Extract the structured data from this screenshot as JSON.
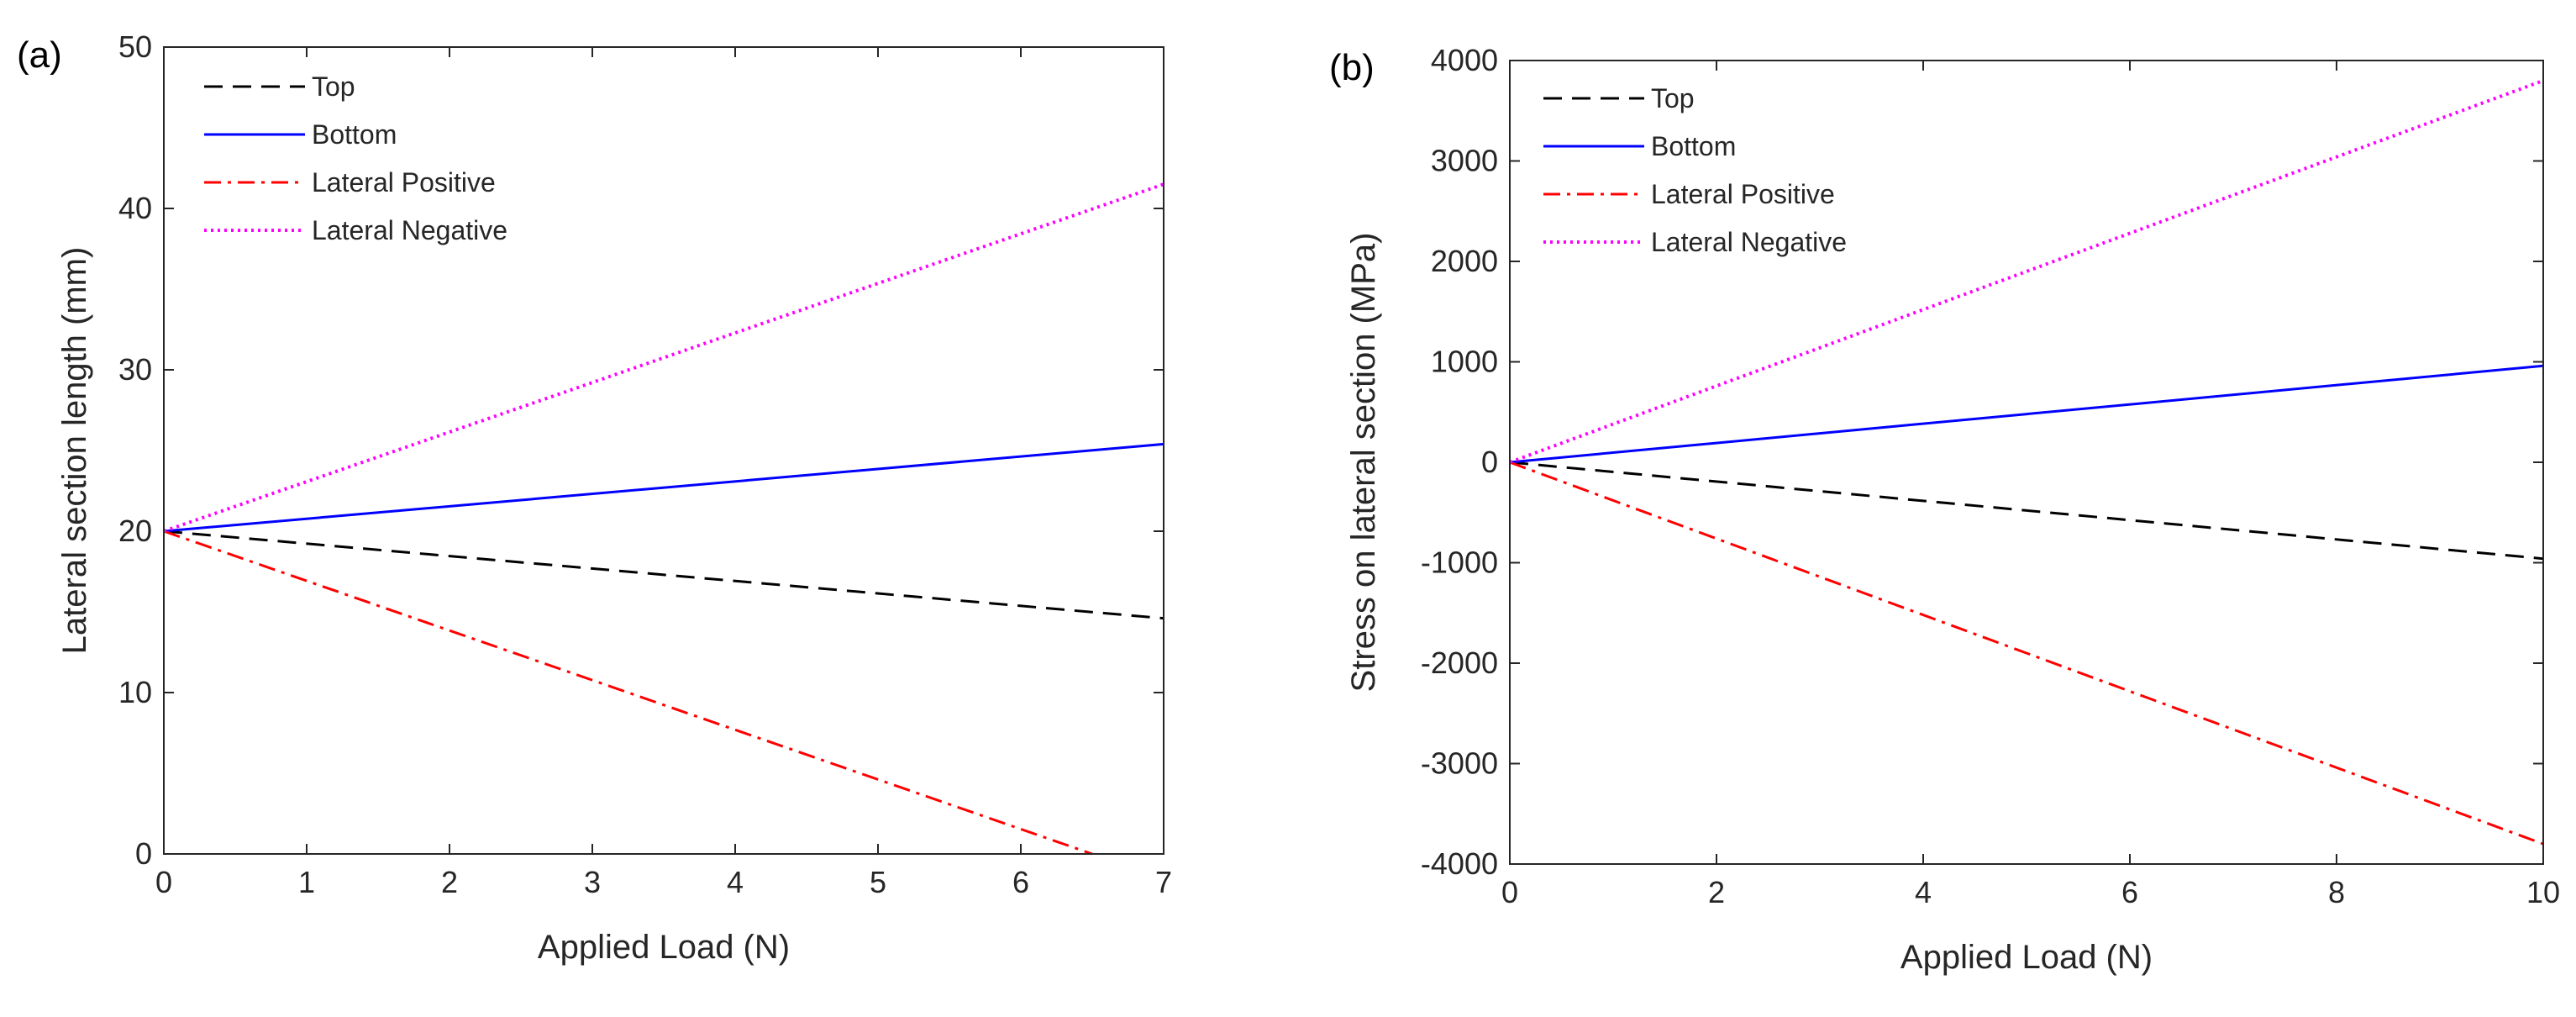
{
  "chart_data": [
    {
      "type": "line",
      "panel_label": "(a)",
      "title": "",
      "xlabel": "Applied Load (N)",
      "ylabel": "Lateral section length (mm)",
      "xlim": [
        0,
        7
      ],
      "ylim": [
        0,
        50
      ],
      "xticks": [
        0,
        1,
        2,
        3,
        4,
        5,
        6,
        7
      ],
      "yticks": [
        0,
        10,
        20,
        30,
        40,
        50
      ],
      "grid": false,
      "legend_position": "top-left",
      "series": [
        {
          "name": "Top",
          "x": [
            0,
            7
          ],
          "y": [
            20,
            14.6
          ],
          "color": "#000000",
          "style": "dashed"
        },
        {
          "name": "Bottom",
          "x": [
            0,
            7
          ],
          "y": [
            20,
            25.4
          ],
          "color": "#0000ff",
          "style": "solid"
        },
        {
          "name": "Lateral Positive",
          "x": [
            0,
            6.5
          ],
          "y": [
            20,
            0
          ],
          "color": "#ff0000",
          "style": "dashdot"
        },
        {
          "name": "Lateral Negative",
          "x": [
            0,
            7
          ],
          "y": [
            20,
            41.5
          ],
          "color": "#ff00ff",
          "style": "dotted"
        }
      ]
    },
    {
      "type": "line",
      "panel_label": "(b)",
      "title": "",
      "xlabel": "Applied Load (N)",
      "ylabel": "Stress on lateral section (MPa)",
      "xlim": [
        0,
        10
      ],
      "ylim": [
        -4000,
        4000
      ],
      "xticks": [
        0,
        2,
        4,
        6,
        8,
        10
      ],
      "yticks": [
        -4000,
        -3000,
        -2000,
        -1000,
        0,
        1000,
        2000,
        3000,
        4000
      ],
      "grid": false,
      "legend_position": "top-left",
      "series": [
        {
          "name": "Top",
          "x": [
            0,
            10
          ],
          "y": [
            0,
            -960
          ],
          "color": "#000000",
          "style": "dashed"
        },
        {
          "name": "Bottom",
          "x": [
            0,
            10
          ],
          "y": [
            0,
            960
          ],
          "color": "#0000ff",
          "style": "solid"
        },
        {
          "name": "Lateral Positive",
          "x": [
            0,
            10
          ],
          "y": [
            0,
            -3800
          ],
          "color": "#ff0000",
          "style": "dashdot"
        },
        {
          "name": "Lateral Negative",
          "x": [
            0,
            10
          ],
          "y": [
            0,
            3800
          ],
          "color": "#ff00ff",
          "style": "dotted"
        }
      ]
    }
  ]
}
